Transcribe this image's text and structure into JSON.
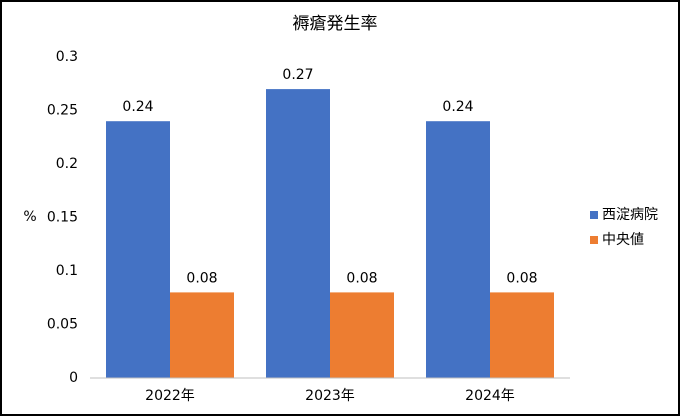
{
  "chart_data": {
    "type": "bar",
    "title": "褥瘡発生率",
    "y_label": "%",
    "categories": [
      "2022年",
      "2023年",
      "2024年"
    ],
    "series": [
      {
        "name": "西淀病院",
        "color": "#4472c4",
        "values": [
          0.24,
          0.27,
          0.24
        ]
      },
      {
        "name": "中央値",
        "color": "#ed7d31",
        "values": [
          0.08,
          0.08,
          0.08
        ]
      }
    ],
    "ylim": [
      0,
      0.3
    ],
    "yticks": [
      0,
      0.05,
      0.1,
      0.15,
      0.2,
      0.25,
      0.3
    ],
    "grid": false,
    "legend": "right"
  }
}
